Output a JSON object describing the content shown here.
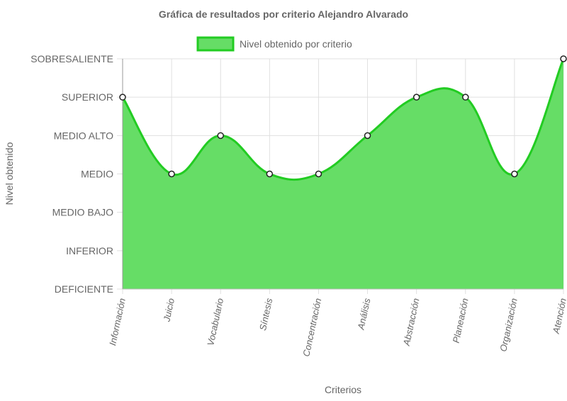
{
  "chart_data": {
    "type": "area",
    "title": "Gráfica de resultados por criterio Alejandro Alvarado",
    "xlabel": "Criterios",
    "ylabel": "Nivel obtenido",
    "categories": [
      "Información",
      "Juicio",
      "Vocabulario",
      "Síntesis",
      "Concentración",
      "Análisis",
      "Abstracción",
      "Planeación",
      "Organización",
      "Atención"
    ],
    "y_levels": [
      "DEFICIENTE",
      "INFERIOR",
      "MEDIO BAJO",
      "MEDIO",
      "MEDIO ALTO",
      "SUPERIOR",
      "SOBRESALIENTE"
    ],
    "ylim": [
      0,
      6
    ],
    "series": [
      {
        "name": "Nivel obtenido por criterio",
        "values": [
          5,
          3,
          4,
          3,
          3,
          4,
          5,
          5,
          3,
          6
        ],
        "fill_color": "#66dd66",
        "line_color": "#22cc22"
      }
    ],
    "legend_position": "top",
    "grid": true
  }
}
